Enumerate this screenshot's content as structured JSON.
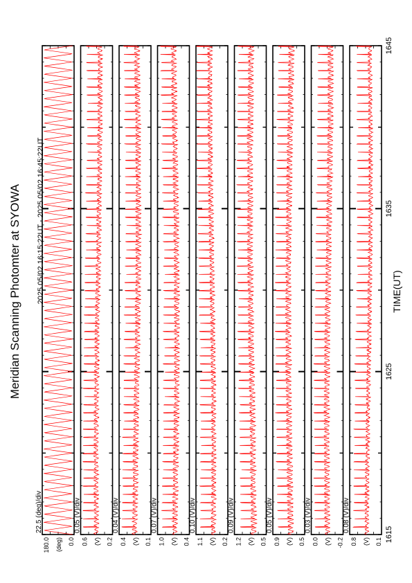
{
  "title": "Meridian Scanning Photomter at SYOWA",
  "subtitle": "2025 05/02 16:15:22UT - 2025 05/02 16:45:22UT",
  "chart_data": {
    "type": "line",
    "title": "Meridian Scanning Photomter at SYOWA",
    "subtitle": "2025 05/02 16:15:22UT - 2025 05/02 16:45:22UT",
    "xlabel": "TIME(UT)",
    "xlim": [
      1615,
      1645
    ],
    "xticks": [
      "1615",
      "1625",
      "1635",
      "1645"
    ],
    "series_color": "#ff0000",
    "panels": [
      {
        "name": "angle",
        "scale_label": "22.5 (deg)/div",
        "unit_label": "(deg)",
        "tick_labels": [
          "180.0",
          "0.0"
        ],
        "ylim": [
          0,
          180
        ],
        "baseline": 0.5,
        "spike": 0.0,
        "osc": 0.95,
        "period": 0.5,
        "noise": 0.0
      },
      {
        "name": "channel-1",
        "scale_label": "0.05 (V)/div",
        "unit_label": "(V)",
        "tick_labels": [
          "0.6",
          "0.2"
        ],
        "ylim": [
          0.2,
          0.6
        ],
        "baseline": 0.45,
        "spike": 0.45,
        "osc": 0.12,
        "period": 0.5,
        "noise": 0.05
      },
      {
        "name": "channel-2",
        "scale_label": "0.04 (V)/div",
        "unit_label": "(V)",
        "tick_labels": [
          "0.4",
          "0.1"
        ],
        "ylim": [
          0.1,
          0.4
        ],
        "baseline": 0.45,
        "spike": 0.45,
        "osc": 0.14,
        "period": 0.5,
        "noise": 0.05
      },
      {
        "name": "channel-3",
        "scale_label": "0.07 (V)/div",
        "unit_label": "(V)",
        "tick_labels": [
          "1.0",
          "0.4"
        ],
        "ylim": [
          0.4,
          1.0
        ],
        "baseline": 0.45,
        "spike": 0.45,
        "osc": 0.14,
        "period": 0.5,
        "noise": 0.05
      },
      {
        "name": "channel-4",
        "scale_label": "0.10 (V)/div",
        "unit_label": "(V)",
        "tick_labels": [
          "1.1",
          "0.2"
        ],
        "ylim": [
          0.2,
          1.1
        ],
        "baseline": 0.5,
        "spike": 0.45,
        "osc": 0.12,
        "period": 0.5,
        "noise": 0.05
      },
      {
        "name": "channel-5",
        "scale_label": "0.09 (V)/div",
        "unit_label": "(V)",
        "tick_labels": [
          "1.2",
          "0.5"
        ],
        "ylim": [
          0.5,
          1.2
        ],
        "baseline": 0.45,
        "spike": 0.45,
        "osc": 0.15,
        "period": 0.5,
        "noise": 0.05
      },
      {
        "name": "channel-6",
        "scale_label": "0.05 (V)/div",
        "unit_label": "(V)",
        "tick_labels": [
          "0.9",
          "0.5"
        ],
        "ylim": [
          0.5,
          0.9
        ],
        "baseline": 0.45,
        "spike": 0.45,
        "osc": 0.15,
        "period": 0.5,
        "noise": 0.05
      },
      {
        "name": "channel-7",
        "scale_label": "0.03 (V)/div",
        "unit_label": "(V)",
        "tick_labels": [
          "0.0",
          "-0.2"
        ],
        "ylim": [
          -0.2,
          0.0
        ],
        "baseline": 0.45,
        "spike": 0.45,
        "osc": 0.15,
        "period": 0.5,
        "noise": 0.04
      },
      {
        "name": "channel-8",
        "scale_label": "0.08 (V)/div",
        "unit_label": "(V)",
        "tick_labels": [
          "0.8",
          "0.1"
        ],
        "ylim": [
          0.1,
          0.8
        ],
        "baseline": 0.4,
        "spike": 0.45,
        "osc": 0.1,
        "period": 0.5,
        "noise": 0.05
      }
    ]
  }
}
